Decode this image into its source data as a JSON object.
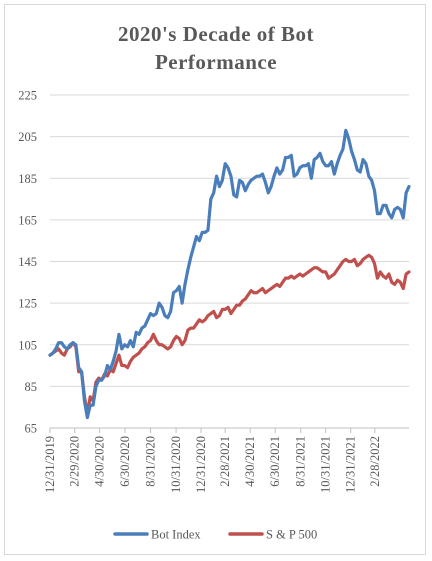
{
  "chart_data": {
    "type": "line",
    "title_lines": [
      "2020's Decade of Bot",
      "Performance"
    ],
    "y_ticks": [
      "225",
      "205",
      "185",
      "165",
      "145",
      "125",
      "105",
      "85",
      "65"
    ],
    "ylim": [
      65,
      225
    ],
    "x_ticks": [
      "12/31/2019",
      "2/29/2020",
      "4/30/2020",
      "6/30/2020",
      "8/31/2020",
      "10/31/2020",
      "12/31/2020",
      "2/28/2021",
      "4/30/2021",
      "6/30/2021",
      "8/31/2021",
      "10/31/2021",
      "12/31/2021",
      "2/28/2022"
    ],
    "x_tick_weeks": [
      0,
      8.6,
      17.3,
      26.1,
      35,
      43.9,
      52.6,
      61,
      69.7,
      78.4,
      87.3,
      96,
      104.7,
      113.1
    ],
    "grid": "horizontal",
    "legend_position": "bottom",
    "series": [
      {
        "name": "Bot Index",
        "color": "#4a7ebb",
        "values": [
          100,
          101,
          103,
          106,
          106,
          104,
          103,
          105,
          106,
          105,
          94,
          92,
          78,
          70,
          76,
          76,
          85,
          88,
          88,
          90,
          95,
          93,
          97,
          102,
          110,
          103,
          105,
          104,
          107,
          104,
          111,
          110,
          113,
          114,
          117,
          120,
          119,
          120,
          125,
          123,
          119,
          118,
          121,
          130,
          131,
          133,
          125,
          134,
          141,
          147,
          152,
          157,
          155,
          159,
          159,
          160,
          175,
          178,
          186,
          181,
          184,
          192,
          190,
          186,
          177,
          176,
          184,
          183,
          179,
          182,
          184,
          185,
          186,
          186,
          187,
          183,
          178,
          181,
          186,
          190,
          187,
          189,
          195,
          195,
          196,
          186,
          187,
          190,
          191,
          191,
          192,
          185,
          194,
          195,
          197,
          193,
          191,
          191,
          193,
          187,
          192,
          196,
          199,
          208,
          204,
          198,
          194,
          189,
          188,
          194,
          192,
          186,
          184,
          179,
          168,
          168,
          172,
          172,
          168,
          166,
          170,
          171,
          170,
          166,
          178,
          181
        ]
      },
      {
        "name": "S & P 500",
        "color": "#c0504d",
        "values": [
          100,
          101,
          102,
          103,
          101,
          100,
          103,
          104,
          106,
          104,
          92,
          92,
          80,
          72,
          80,
          78,
          87,
          89,
          88,
          91,
          90,
          93,
          92,
          96,
          100,
          95,
          95,
          94,
          97,
          99,
          100,
          101,
          103,
          104,
          106,
          107,
          110,
          107,
          105,
          105,
          104,
          103,
          104,
          107,
          109,
          108,
          105,
          107,
          112,
          113,
          113,
          115,
          117,
          116,
          117,
          119,
          120,
          121,
          118,
          119,
          122,
          122,
          123,
          120,
          122,
          124,
          124,
          126,
          127,
          129,
          131,
          130,
          130,
          131,
          132,
          130,
          131,
          132,
          133,
          134,
          133,
          135,
          137,
          137,
          138,
          137,
          138,
          139,
          138,
          139,
          140,
          141,
          142,
          142,
          141,
          140,
          140,
          137,
          138,
          139,
          141,
          143,
          145,
          146,
          145,
          145,
          146,
          143,
          144,
          146,
          147,
          148,
          147,
          144,
          137,
          140,
          138,
          137,
          139,
          135,
          134,
          136,
          135,
          132,
          139,
          140
        ]
      }
    ]
  }
}
